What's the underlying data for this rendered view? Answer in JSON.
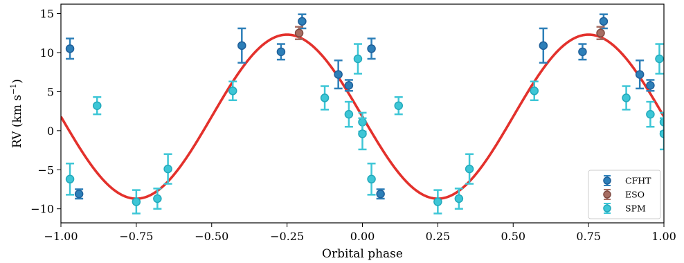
{
  "chart_data": {
    "type": "scatter",
    "xlabel": "Orbital phase",
    "ylabel_prefix": "RV (km s",
    "ylabel_exponent": "−1",
    "ylabel_suffix": ")",
    "xlim": [
      -1.0,
      1.0
    ],
    "ylim": [
      -11.8,
      16.2
    ],
    "xticks": [
      -1.0,
      -0.75,
      -0.5,
      -0.25,
      0.0,
      0.25,
      0.5,
      0.75,
      1.0
    ],
    "xtick_labels": [
      "−1.00",
      "−0.75",
      "−0.50",
      "−0.25",
      "0.00",
      "0.25",
      "0.50",
      "0.75",
      "1.00"
    ],
    "yticks": [
      -10,
      -5,
      0,
      5,
      10,
      15
    ],
    "ytick_labels": [
      "−10",
      "−5",
      "0",
      "5",
      "10",
      "15"
    ],
    "grid": false,
    "legend_position": "bottom-right",
    "model": {
      "color": "#e3312c",
      "amplitude": 10.5,
      "offset": 1.8,
      "phase_of_max": -0.25
    },
    "series": [
      {
        "name": "CFHT",
        "color": "#2d7fb8",
        "edge": "#1f5f99",
        "points": [
          {
            "x": 0.03,
            "y": 10.5,
            "err": 1.3
          },
          {
            "x": 0.06,
            "y": -8.1,
            "err": 0.6
          },
          {
            "x": 0.6,
            "y": 10.9,
            "err": 2.2
          },
          {
            "x": 0.73,
            "y": 10.1,
            "err": 1.0
          },
          {
            "x": 0.8,
            "y": 14.0,
            "err": 0.9
          },
          {
            "x": 0.92,
            "y": 7.2,
            "err": 1.8
          },
          {
            "x": 0.955,
            "y": 5.8,
            "err": 0.7
          }
        ]
      },
      {
        "name": "ESO",
        "color": "#a66d62",
        "edge": "#7f4a41",
        "points": [
          {
            "x": 0.79,
            "y": 12.5,
            "err": 0.8
          }
        ]
      },
      {
        "name": "SPM",
        "color": "#3dc6d6",
        "edge": "#22a9bb",
        "points": [
          {
            "x": 0.03,
            "y": -6.2,
            "err": 2.0
          },
          {
            "x": 0.12,
            "y": 3.2,
            "err": 1.1
          },
          {
            "x": 0.25,
            "y": -9.1,
            "err": 1.5
          },
          {
            "x": 0.32,
            "y": -8.7,
            "err": 1.3
          },
          {
            "x": 0.355,
            "y": -4.9,
            "err": 1.9
          },
          {
            "x": 0.57,
            "y": 5.1,
            "err": 1.2
          },
          {
            "x": 0.875,
            "y": 4.2,
            "err": 1.5
          },
          {
            "x": 0.955,
            "y": 2.1,
            "err": 1.6
          },
          {
            "x": 0.985,
            "y": 9.2,
            "err": 1.9
          },
          {
            "x": 1.0,
            "y": 1.1,
            "err": 1.2
          },
          {
            "x": 1.0,
            "y": -0.4,
            "err": 2.0
          }
        ]
      }
    ]
  }
}
